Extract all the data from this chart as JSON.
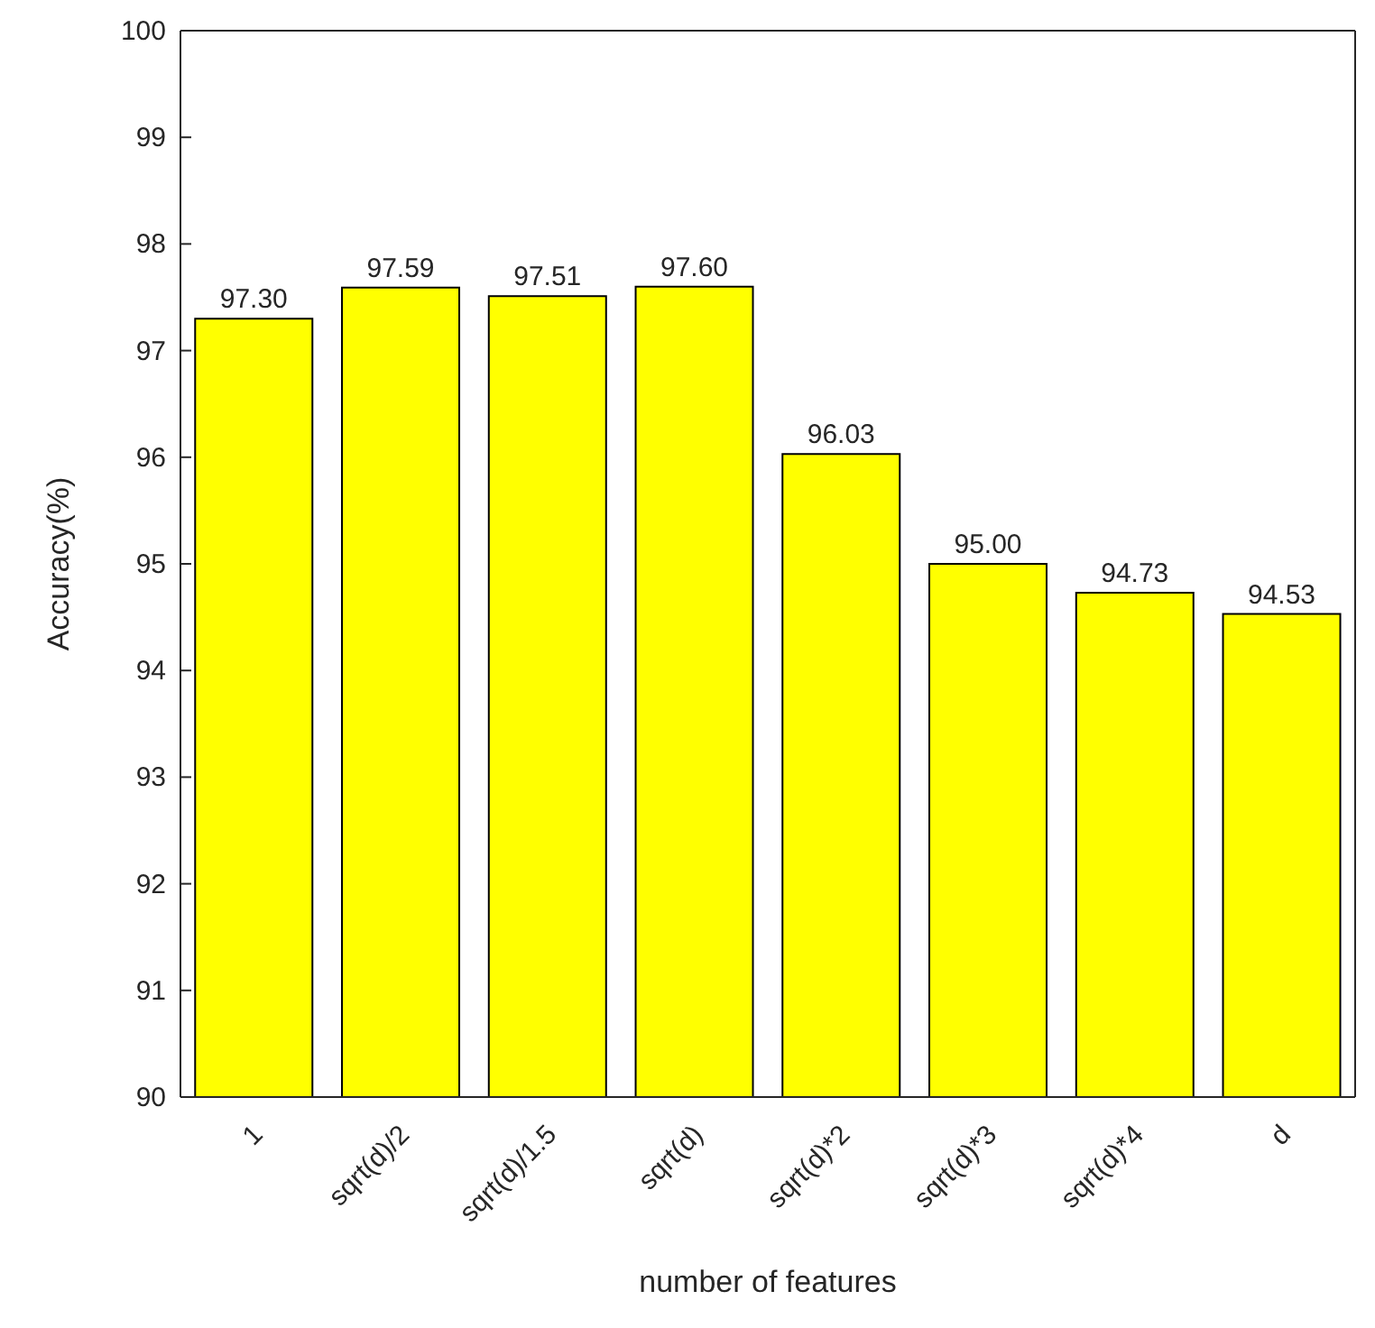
{
  "chart_data": {
    "type": "bar",
    "xlabel": "number of features",
    "ylabel": "Accuracy(%)",
    "categories": [
      "1",
      "sqrt(d)/2",
      "sqrt(d)/1.5",
      "sqrt(d)",
      "sqrt(d)*2",
      "sqrt(d)*3",
      "sqrt(d)*4",
      "d"
    ],
    "values": [
      97.3,
      97.59,
      97.51,
      97.6,
      96.03,
      95.0,
      94.73,
      94.53
    ],
    "value_labels": [
      "97.30",
      "97.59",
      "97.51",
      "97.60",
      "96.03",
      "95.00",
      "94.73",
      "94.53"
    ],
    "color": "#ffff00",
    "ylim": [
      90,
      100
    ],
    "yticks": [
      90,
      91,
      92,
      93,
      94,
      95,
      96,
      97,
      98,
      99,
      100
    ],
    "grid": false
  }
}
